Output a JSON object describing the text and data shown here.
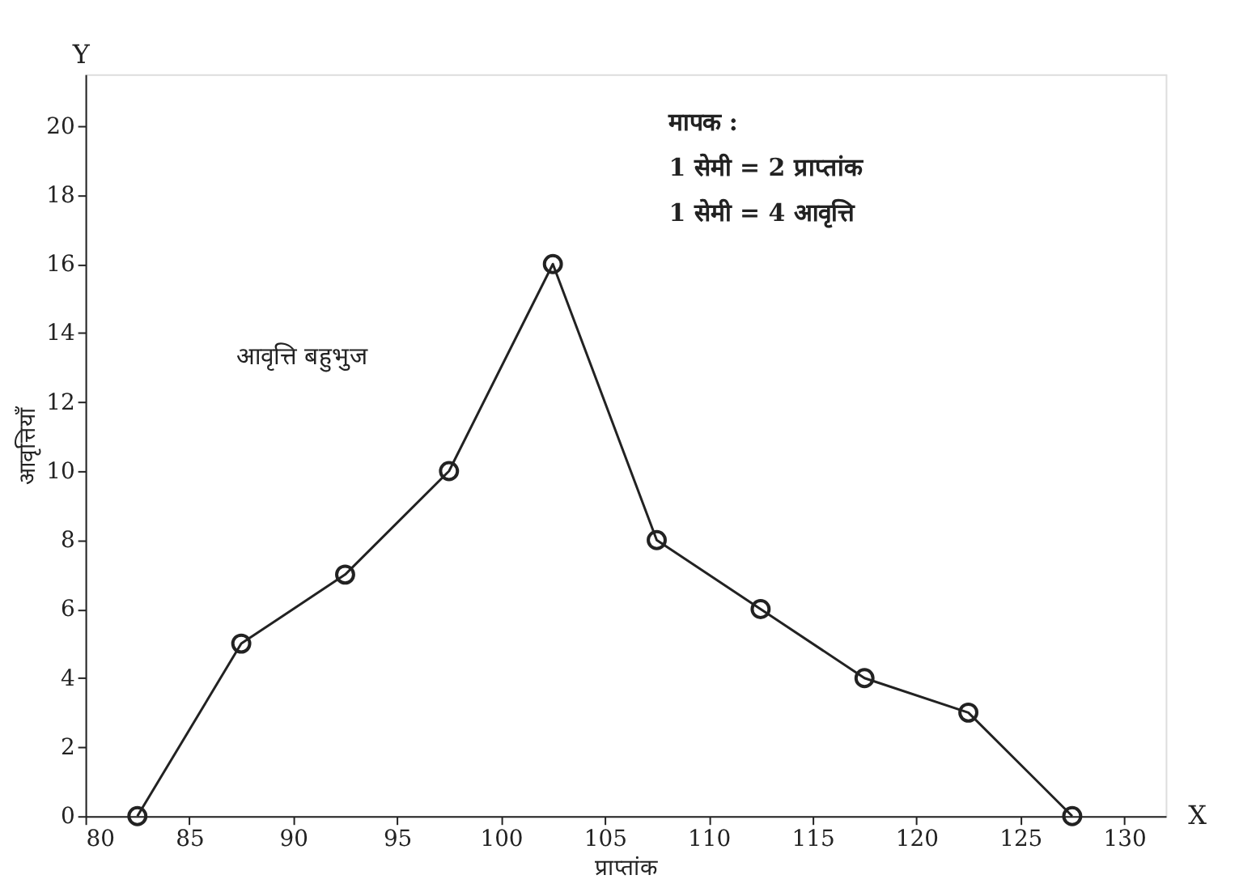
{
  "chart_data": {
    "type": "line",
    "xlabel": "प्राप्तांक",
    "ylabel": "आवृत्तियाँ",
    "x": [
      82.5,
      87.5,
      92.5,
      97.5,
      102.5,
      107.5,
      112.5,
      117.5,
      122.5,
      127.5
    ],
    "series": [
      {
        "color": "#222222",
        "values": [
          0,
          5,
          7,
          10,
          16,
          8,
          6,
          4,
          3,
          0
        ]
      }
    ],
    "xlim": [
      80,
      132
    ],
    "xticks": [
      80,
      85,
      90,
      95,
      100,
      105,
      110,
      115,
      120,
      125,
      130
    ],
    "ylim": [
      0,
      21.5
    ],
    "yticks": [
      0,
      2,
      4,
      6,
      8,
      10,
      12,
      14,
      16,
      18,
      20
    ],
    "marker": "circle",
    "grid": false,
    "annotations": [
      "मापक :",
      "1 सेमी = 2 प्राप्तांक",
      "1 सेमी = 4 आवृत्ति",
      "आवृत्ति बहुभुज",
      "X",
      "Y"
    ]
  }
}
